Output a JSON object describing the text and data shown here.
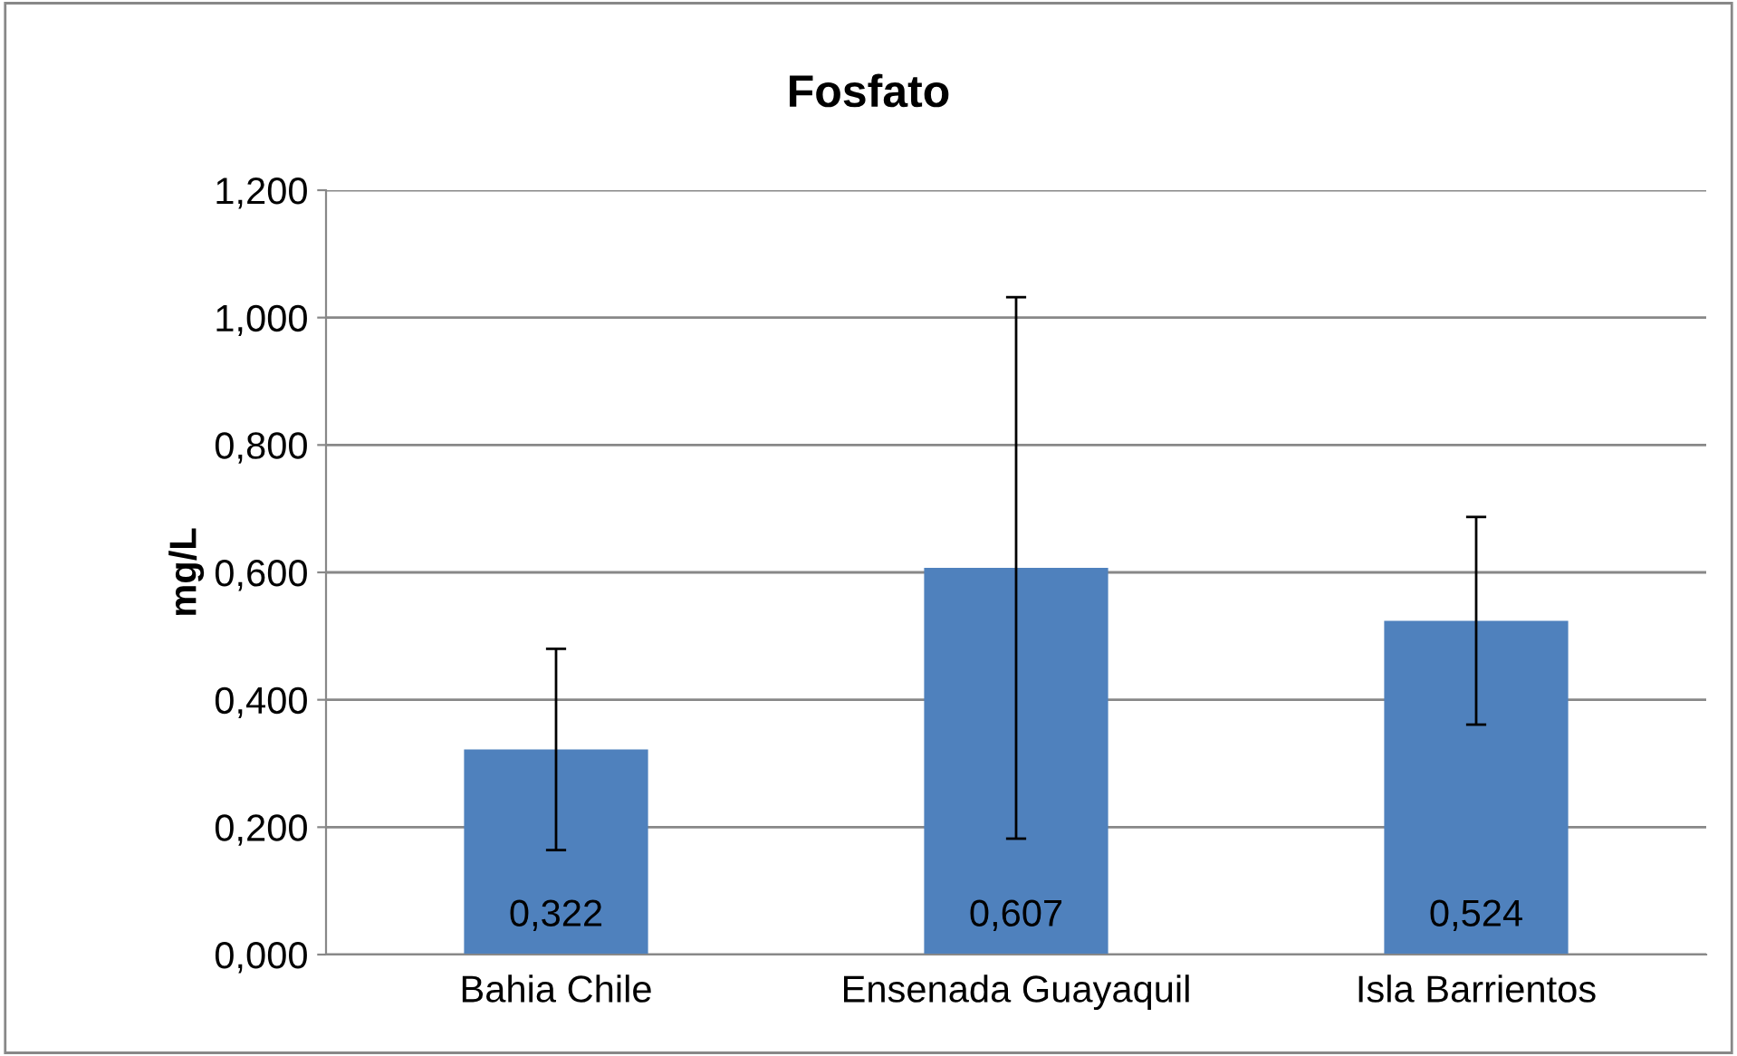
{
  "chart_data": {
    "type": "bar",
    "title": "Fosfato",
    "ylabel": "mg/L",
    "categories": [
      "Bahia Chile",
      "Ensenada Guayaquil",
      "Isla Barrientos"
    ],
    "values": [
      0.322,
      0.607,
      0.524
    ],
    "value_labels": [
      "0,322",
      "0,607",
      "0,524"
    ],
    "errors": [
      0.158,
      0.425,
      0.163
    ],
    "color": "#4f81bd",
    "ylim": [
      0,
      1.2
    ],
    "yticks": [
      {
        "value": 0,
        "label": "0,000"
      },
      {
        "value": 0.2,
        "label": "0,200"
      },
      {
        "value": 0.4,
        "label": "0,400"
      },
      {
        "value": 0.6,
        "label": "0,600"
      },
      {
        "value": 0.8,
        "label": "0,800"
      },
      {
        "value": 1.0,
        "label": "1,000"
      },
      {
        "value": 1.2,
        "label": "1,200"
      }
    ],
    "grid": "y"
  }
}
